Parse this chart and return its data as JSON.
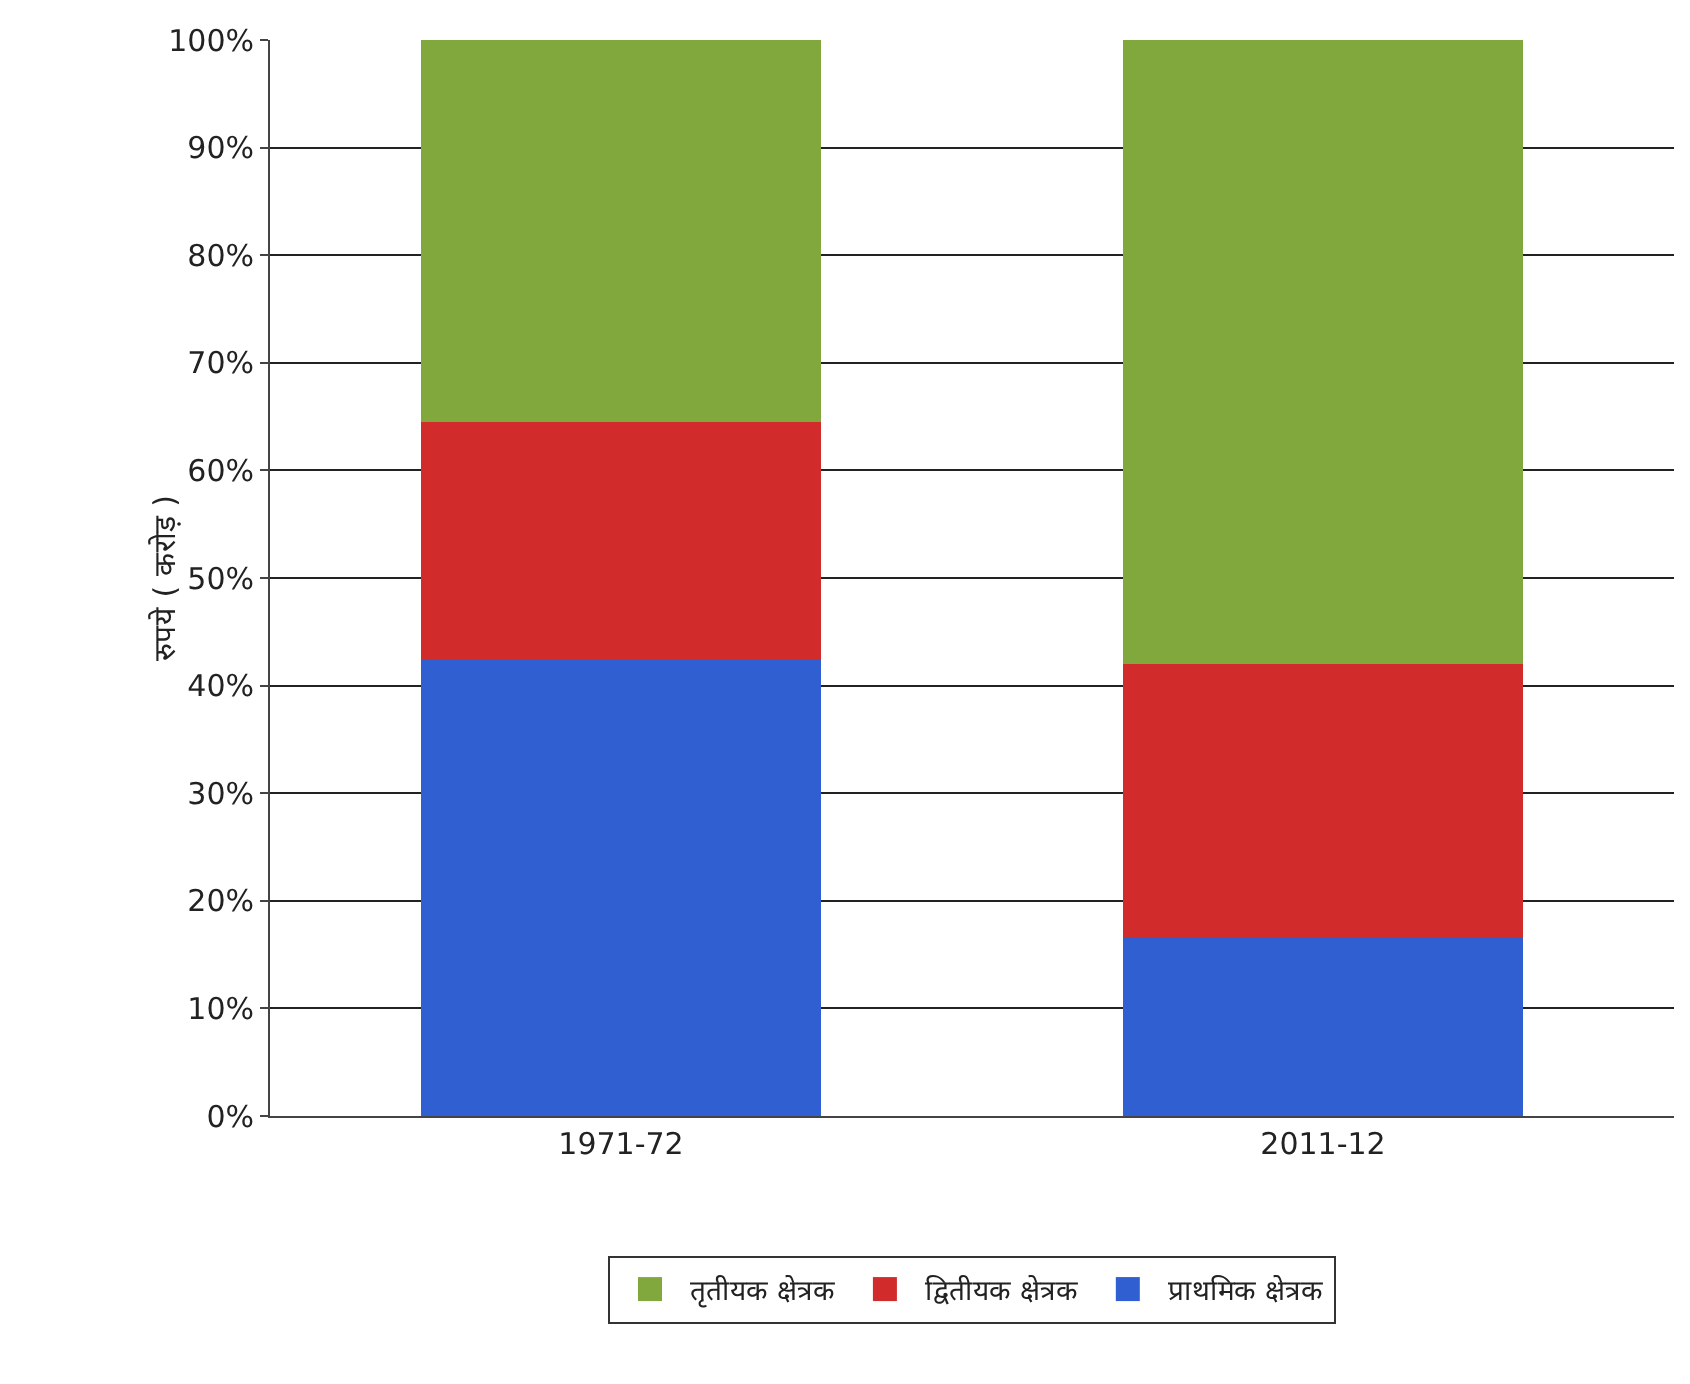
{
  "chart_data": {
    "type": "bar",
    "stacked": true,
    "ylabel": "रुपये ( करोड़ )",
    "categories": [
      "1971-72",
      "2011-12"
    ],
    "series": [
      {
        "name": "प्राथमिक क्षेत्रक",
        "color": "#2f5fd0",
        "values": [
          42.5,
          16.5
        ]
      },
      {
        "name": "द्वितीयक क्षेत्रक",
        "color": "#d22b2b",
        "values": [
          22,
          25.5
        ]
      },
      {
        "name": "तृतीयक क्षेत्रक",
        "color": "#80a83c",
        "values": [
          35.5,
          58
        ]
      }
    ],
    "ylim": [
      0,
      100
    ],
    "yticks": [
      {
        "value": 0,
        "label": "0%"
      },
      {
        "value": 10,
        "label": "10%"
      },
      {
        "value": 20,
        "label": "20%"
      },
      {
        "value": 30,
        "label": "30%"
      },
      {
        "value": 40,
        "label": "40%"
      },
      {
        "value": 50,
        "label": "50%"
      },
      {
        "value": 60,
        "label": "60%"
      },
      {
        "value": 70,
        "label": "70%"
      },
      {
        "value": 80,
        "label": "80%"
      },
      {
        "value": 90,
        "label": "90%"
      },
      {
        "value": 100,
        "label": "100%"
      }
    ],
    "grid": "y",
    "legend": "bottom"
  }
}
